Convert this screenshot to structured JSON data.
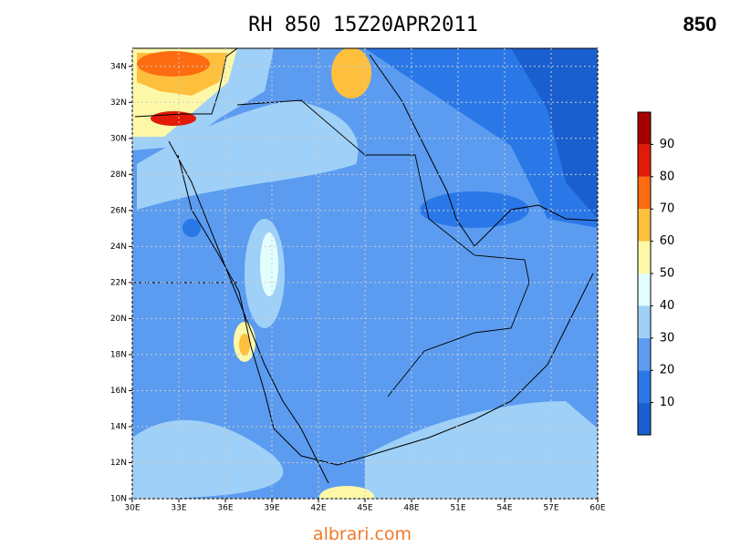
{
  "header": {
    "title": "RH 850 15Z20APR2011",
    "level": "850"
  },
  "map": {
    "xlim": [
      30,
      60
    ],
    "ylim": [
      10,
      35
    ],
    "xticks": [
      {
        "value": 30,
        "label": "30E"
      },
      {
        "value": 33,
        "label": "33E"
      },
      {
        "value": 36,
        "label": "36E"
      },
      {
        "value": 39,
        "label": "39E"
      },
      {
        "value": 42,
        "label": "42E"
      },
      {
        "value": 45,
        "label": "45E"
      },
      {
        "value": 48,
        "label": "48E"
      },
      {
        "value": 51,
        "label": "51E"
      },
      {
        "value": 54,
        "label": "54E"
      },
      {
        "value": 57,
        "label": "57E"
      },
      {
        "value": 60,
        "label": "60E"
      }
    ],
    "yticks": [
      {
        "value": 10,
        "label": "10N"
      },
      {
        "value": 12,
        "label": "12N"
      },
      {
        "value": 14,
        "label": "14N"
      },
      {
        "value": 16,
        "label": "16N"
      },
      {
        "value": 18,
        "label": "18N"
      },
      {
        "value": 20,
        "label": "20N"
      },
      {
        "value": 22,
        "label": "22N"
      },
      {
        "value": 24,
        "label": "24N"
      },
      {
        "value": 26,
        "label": "26N"
      },
      {
        "value": 28,
        "label": "28N"
      },
      {
        "value": 30,
        "label": "30N"
      },
      {
        "value": 32,
        "label": "32N"
      },
      {
        "value": 34,
        "label": "34N"
      }
    ],
    "grid": true
  },
  "colorbar": {
    "levels": [
      10,
      20,
      30,
      40,
      50,
      60,
      70,
      80,
      90
    ],
    "colors": [
      "#1a5fcf",
      "#2a78e8",
      "#5b9cf0",
      "#9fd0f7",
      "#e2fefe",
      "#fdf8a8",
      "#fdbf3c",
      "#fd6c10",
      "#e21b08",
      "#a60000"
    ]
  },
  "footer": {
    "text": "albrari.com"
  }
}
